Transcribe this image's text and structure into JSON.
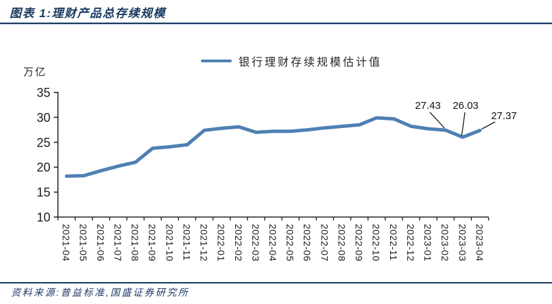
{
  "chart_data": {
    "type": "line",
    "title": "图表 1:理财产品总存续规模",
    "unit_label": "万亿",
    "legend_label": "银行理财存续规模估计值",
    "legend_position": "top-center",
    "grid": false,
    "xlabel": "",
    "ylabel": "万亿",
    "ylim": [
      10,
      35
    ],
    "yticks": [
      10,
      15,
      20,
      25,
      30,
      35
    ],
    "categories": [
      "2021-04",
      "2021-05",
      "2021-06",
      "2021-07",
      "2021-08",
      "2021-09",
      "2021-10",
      "2021-11",
      "2021-12",
      "2022-01",
      "2022-02",
      "2022-03",
      "2022-04",
      "2022-05",
      "2022-06",
      "2022-07",
      "2022-08",
      "2022-09",
      "2022-10",
      "2022-11",
      "2022-12",
      "2023-01",
      "2023-02",
      "2023-03",
      "2023-04"
    ],
    "series": [
      {
        "name": "银行理财存续规模估计值",
        "color": "#4F80B3",
        "values": [
          18.2,
          18.3,
          19.3,
          20.2,
          21.0,
          23.8,
          24.1,
          24.5,
          27.4,
          27.8,
          28.1,
          27.0,
          27.2,
          27.2,
          27.5,
          27.9,
          28.2,
          28.5,
          29.9,
          29.7,
          28.2,
          27.7,
          27.43,
          26.03,
          27.37
        ]
      }
    ],
    "annotations": [
      {
        "category": "2023-02",
        "value": 27.43,
        "label": "27.43"
      },
      {
        "category": "2023-03",
        "value": 26.03,
        "label": "26.03"
      },
      {
        "category": "2023-04",
        "value": 27.37,
        "label": "27.37"
      }
    ],
    "axis_color": "#262626",
    "text_color": "#1a1a1a"
  },
  "footer": {
    "source": "资料来源:普益标准,国盛证券研究所"
  }
}
